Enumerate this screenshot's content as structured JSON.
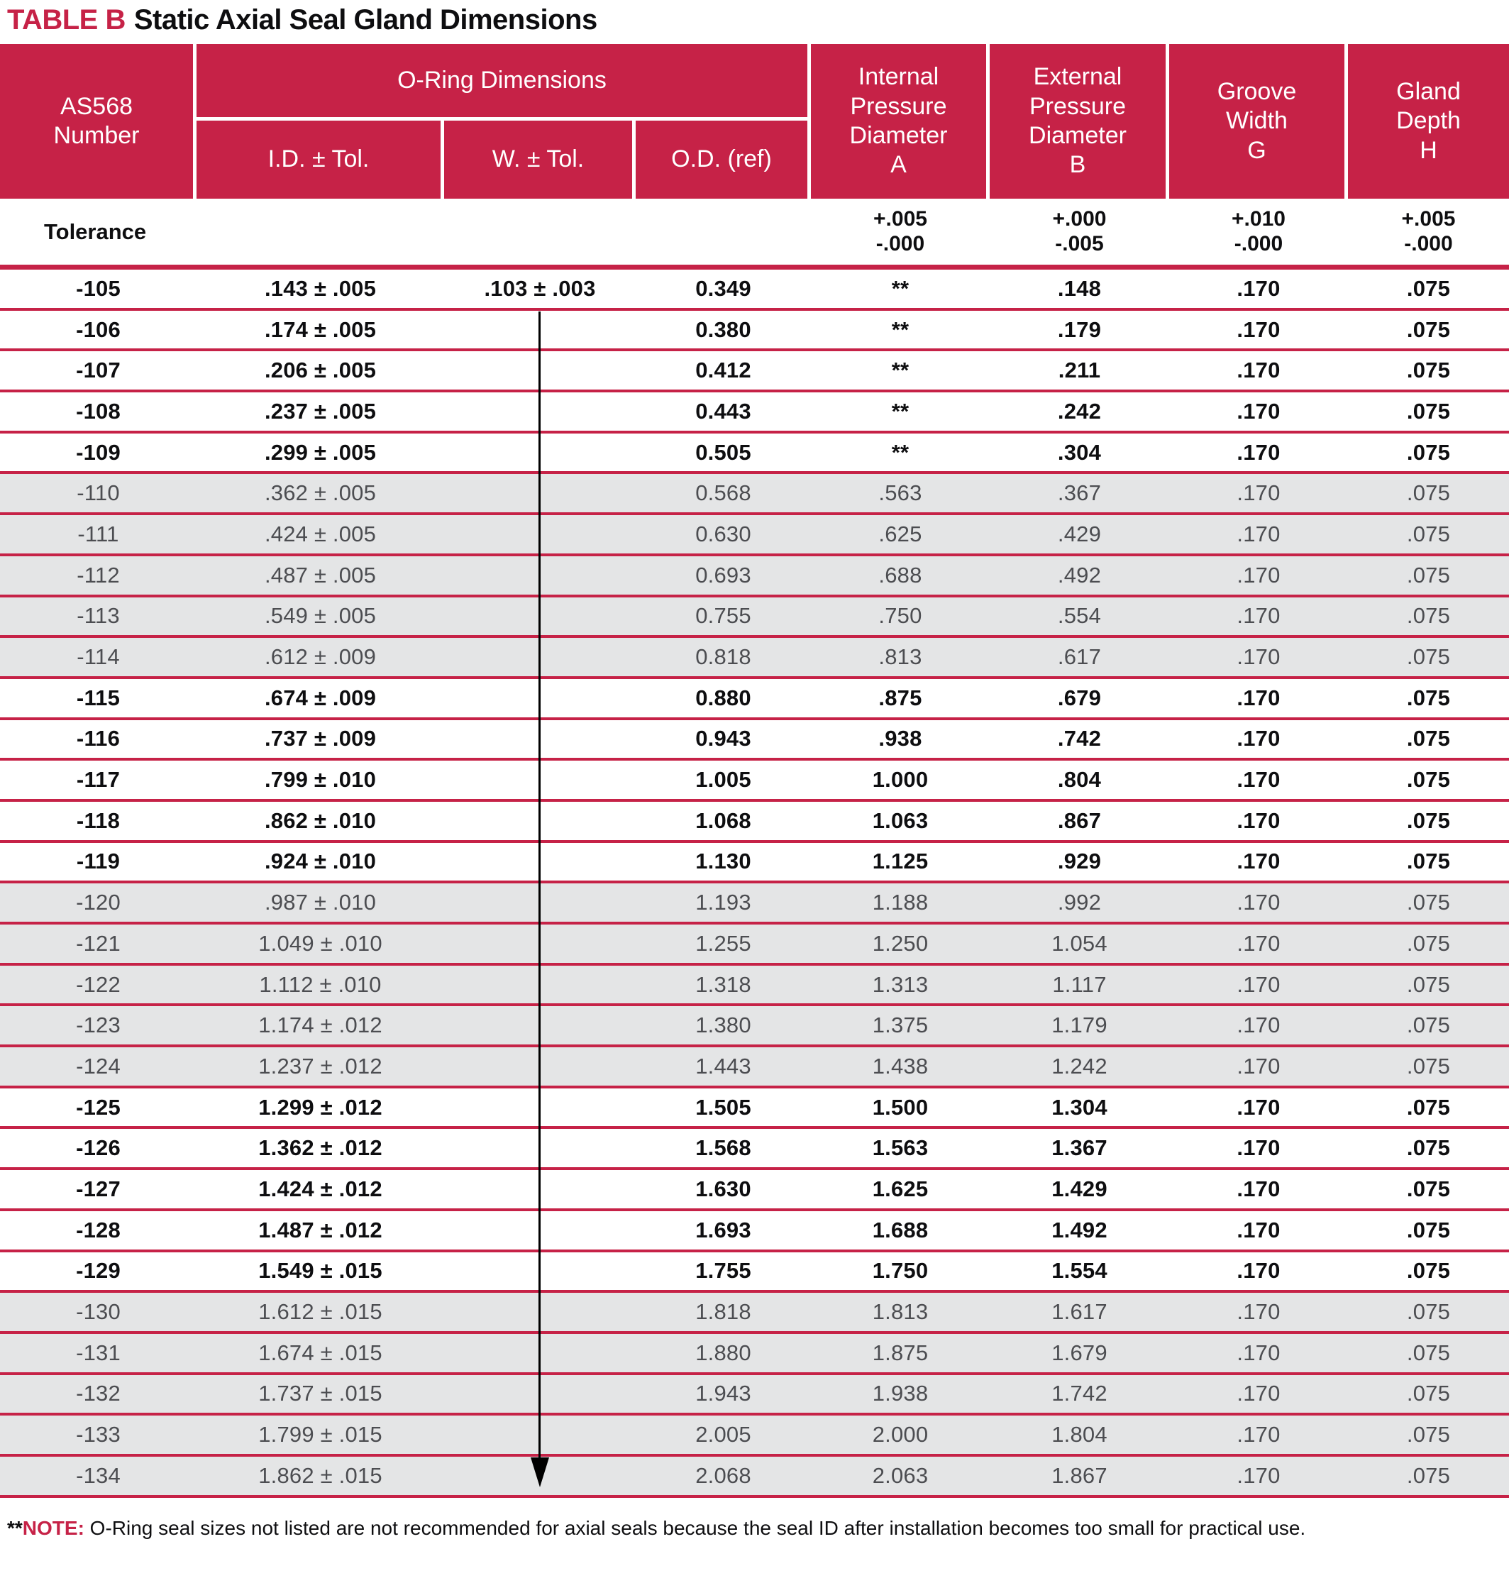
{
  "title": {
    "accent": "TABLE B",
    "text": "Static Axial Seal Gland Dimensions"
  },
  "colors": {
    "accent_crimson": "#C62247",
    "band_gray": "#E4E5E6",
    "white_row_text": "#0e0e10",
    "gray_row_text": "#4c4d51"
  },
  "table": {
    "header": {
      "as568": "AS568\nNumber",
      "oring_group": "O-Ring Dimensions",
      "id_tol": "I.D. ± Tol.",
      "w_tol": "W. ± Tol.",
      "od_ref": "O.D. (ref)",
      "internal_a": "Internal\nPressure\nDiameter\nA",
      "external_b": "External\nPressure\nDiameter\nB",
      "groove_g": "Groove\nWidth\nG",
      "gland_h": "Gland\nDepth\nH"
    },
    "tolerance_row": {
      "label": "Tolerance",
      "a": "+.005\n-.000",
      "b": "+.000\n-.005",
      "g": "+.010\n-.000",
      "h": "+.005\n-.000"
    },
    "rows": [
      {
        "as568": "-105",
        "id": ".143 ± .005",
        "w": ".103 ± .003",
        "od": "0.349",
        "a": "**",
        "b": ".148",
        "g": ".170",
        "h": ".075",
        "band": "white"
      },
      {
        "as568": "-106",
        "id": ".174 ± .005",
        "w": "",
        "od": "0.380",
        "a": "**",
        "b": ".179",
        "g": ".170",
        "h": ".075",
        "band": "white"
      },
      {
        "as568": "-107",
        "id": ".206 ± .005",
        "w": "",
        "od": "0.412",
        "a": "**",
        "b": ".211",
        "g": ".170",
        "h": ".075",
        "band": "white"
      },
      {
        "as568": "-108",
        "id": ".237 ± .005",
        "w": "",
        "od": "0.443",
        "a": "**",
        "b": ".242",
        "g": ".170",
        "h": ".075",
        "band": "white"
      },
      {
        "as568": "-109",
        "id": ".299 ± .005",
        "w": "",
        "od": "0.505",
        "a": "**",
        "b": ".304",
        "g": ".170",
        "h": ".075",
        "band": "white"
      },
      {
        "as568": "-110",
        "id": ".362 ± .005",
        "w": "",
        "od": "0.568",
        "a": ".563",
        "b": ".367",
        "g": ".170",
        "h": ".075",
        "band": "gray"
      },
      {
        "as568": "-111",
        "id": ".424 ± .005",
        "w": "",
        "od": "0.630",
        "a": ".625",
        "b": ".429",
        "g": ".170",
        "h": ".075",
        "band": "gray"
      },
      {
        "as568": "-112",
        "id": ".487 ± .005",
        "w": "",
        "od": "0.693",
        "a": ".688",
        "b": ".492",
        "g": ".170",
        "h": ".075",
        "band": "gray"
      },
      {
        "as568": "-113",
        "id": ".549 ± .005",
        "w": "",
        "od": "0.755",
        "a": ".750",
        "b": ".554",
        "g": ".170",
        "h": ".075",
        "band": "gray"
      },
      {
        "as568": "-114",
        "id": ".612 ± .009",
        "w": "",
        "od": "0.818",
        "a": ".813",
        "b": ".617",
        "g": ".170",
        "h": ".075",
        "band": "gray"
      },
      {
        "as568": "-115",
        "id": ".674 ± .009",
        "w": "",
        "od": "0.880",
        "a": ".875",
        "b": ".679",
        "g": ".170",
        "h": ".075",
        "band": "white"
      },
      {
        "as568": "-116",
        "id": ".737 ± .009",
        "w": "",
        "od": "0.943",
        "a": ".938",
        "b": ".742",
        "g": ".170",
        "h": ".075",
        "band": "white"
      },
      {
        "as568": "-117",
        "id": ".799 ± .010",
        "w": "",
        "od": "1.005",
        "a": "1.000",
        "b": ".804",
        "g": ".170",
        "h": ".075",
        "band": "white"
      },
      {
        "as568": "-118",
        "id": ".862 ± .010",
        "w": "",
        "od": "1.068",
        "a": "1.063",
        "b": ".867",
        "g": ".170",
        "h": ".075",
        "band": "white"
      },
      {
        "as568": "-119",
        "id": ".924 ± .010",
        "w": "",
        "od": "1.130",
        "a": "1.125",
        "b": ".929",
        "g": ".170",
        "h": ".075",
        "band": "white"
      },
      {
        "as568": "-120",
        "id": ".987 ± .010",
        "w": "",
        "od": "1.193",
        "a": "1.188",
        "b": ".992",
        "g": ".170",
        "h": ".075",
        "band": "gray"
      },
      {
        "as568": "-121",
        "id": "1.049 ± .010",
        "w": "",
        "od": "1.255",
        "a": "1.250",
        "b": "1.054",
        "g": ".170",
        "h": ".075",
        "band": "gray"
      },
      {
        "as568": "-122",
        "id": "1.112 ± .010",
        "w": "",
        "od": "1.318",
        "a": "1.313",
        "b": "1.117",
        "g": ".170",
        "h": ".075",
        "band": "gray"
      },
      {
        "as568": "-123",
        "id": "1.174 ± .012",
        "w": "",
        "od": "1.380",
        "a": "1.375",
        "b": "1.179",
        "g": ".170",
        "h": ".075",
        "band": "gray"
      },
      {
        "as568": "-124",
        "id": "1.237 ± .012",
        "w": "",
        "od": "1.443",
        "a": "1.438",
        "b": "1.242",
        "g": ".170",
        "h": ".075",
        "band": "gray"
      },
      {
        "as568": "-125",
        "id": "1.299 ± .012",
        "w": "",
        "od": "1.505",
        "a": "1.500",
        "b": "1.304",
        "g": ".170",
        "h": ".075",
        "band": "white"
      },
      {
        "as568": "-126",
        "id": "1.362 ± .012",
        "w": "",
        "od": "1.568",
        "a": "1.563",
        "b": "1.367",
        "g": ".170",
        "h": ".075",
        "band": "white"
      },
      {
        "as568": "-127",
        "id": "1.424 ± .012",
        "w": "",
        "od": "1.630",
        "a": "1.625",
        "b": "1.429",
        "g": ".170",
        "h": ".075",
        "band": "white"
      },
      {
        "as568": "-128",
        "id": "1.487 ± .012",
        "w": "",
        "od": "1.693",
        "a": "1.688",
        "b": "1.492",
        "g": ".170",
        "h": ".075",
        "band": "white"
      },
      {
        "as568": "-129",
        "id": "1.549 ± .015",
        "w": "",
        "od": "1.755",
        "a": "1.750",
        "b": "1.554",
        "g": ".170",
        "h": ".075",
        "band": "white"
      },
      {
        "as568": "-130",
        "id": "1.612 ± .015",
        "w": "",
        "od": "1.818",
        "a": "1.813",
        "b": "1.617",
        "g": ".170",
        "h": ".075",
        "band": "gray"
      },
      {
        "as568": "-131",
        "id": "1.674 ± .015",
        "w": "",
        "od": "1.880",
        "a": "1.875",
        "b": "1.679",
        "g": ".170",
        "h": ".075",
        "band": "gray"
      },
      {
        "as568": "-132",
        "id": "1.737 ± .015",
        "w": "",
        "od": "1.943",
        "a": "1.938",
        "b": "1.742",
        "g": ".170",
        "h": ".075",
        "band": "gray"
      },
      {
        "as568": "-133",
        "id": "1.799 ± .015",
        "w": "",
        "od": "2.005",
        "a": "2.000",
        "b": "1.804",
        "g": ".170",
        "h": ".075",
        "band": "gray"
      },
      {
        "as568": "-134",
        "id": "1.862 ± .015",
        "w": "",
        "od": "2.068",
        "a": "2.063",
        "b": "1.867",
        "g": ".170",
        "h": ".075",
        "band": "gray"
      }
    ]
  },
  "footnote": {
    "asterisks": "**",
    "label": "NOTE:",
    "text": " O-Ring seal sizes not listed are not recommended for axial seals because the seal ID after installation becomes too small for practical use."
  }
}
